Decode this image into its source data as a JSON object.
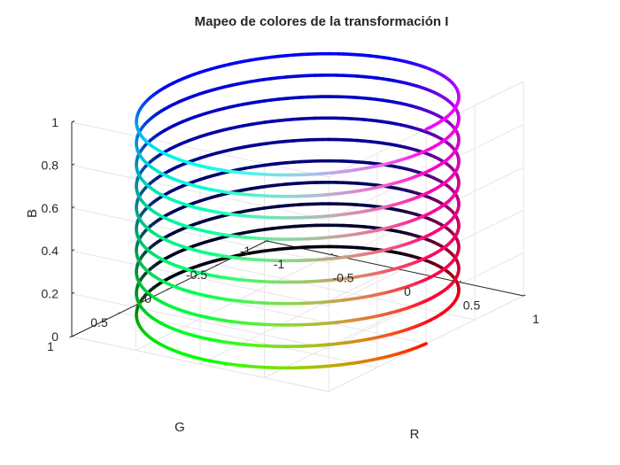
{
  "chart_data": {
    "type": "line3d",
    "title": "Mapeo de colores de la transformación I",
    "xlabel": "R",
    "ylabel": "G",
    "zlabel": "B",
    "xlim": [
      -1,
      1
    ],
    "ylim": [
      -1,
      1
    ],
    "zlim": [
      0,
      1
    ],
    "xticks": [
      -1,
      -0.5,
      0,
      0.5,
      1
    ],
    "xtick_labels": [
      "-1",
      "-0.5",
      "0",
      "0.5",
      "1"
    ],
    "yticks": [
      -1,
      -0.5,
      0,
      0.5,
      1
    ],
    "ytick_labels": [
      "-1",
      "-0.5",
      "0",
      "0.5",
      "1"
    ],
    "zticks": [
      0,
      0.2,
      0.4,
      0.6,
      0.8,
      1
    ],
    "ztick_labels": [
      "0",
      "0.2",
      "0.4",
      "0.6",
      "0.8",
      "1"
    ],
    "grid": true,
    "view": {
      "azimuth": -37.5,
      "elevation": 30
    },
    "series": [
      {
        "curve": "helix",
        "x": "cos(t)",
        "y": "sin(t)",
        "z": "t / (2*pi*turns)",
        "turns": 10,
        "t_range": [
          0,
          62.83
        ],
        "color_rule": "rgb(max(x,0), max(y,0), z)"
      }
    ]
  }
}
